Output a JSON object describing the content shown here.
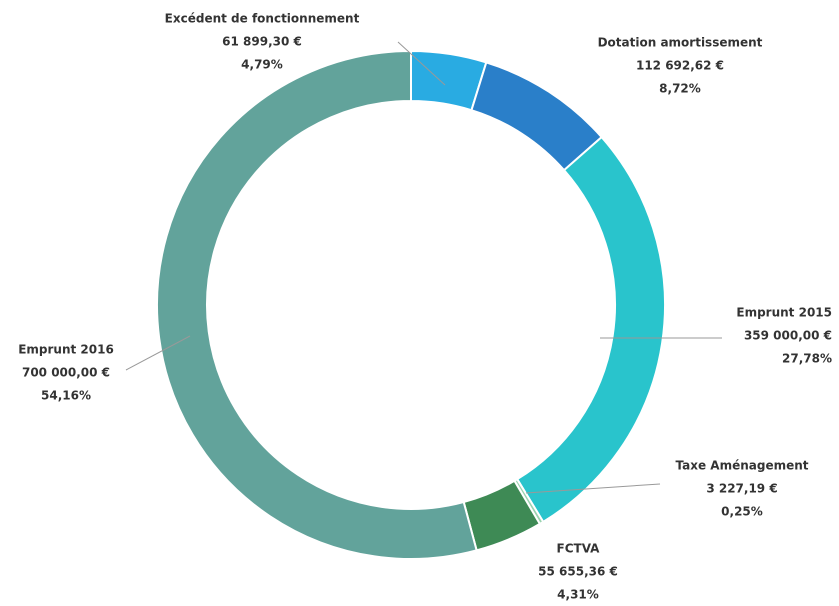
{
  "chart_data": {
    "type": "donut",
    "categories": [
      "Excédent de fonctionnement",
      "Dotation amortissement",
      "Emprunt 2015",
      "Taxe Aménagement",
      "FCTVA",
      "Emprunt 2016"
    ],
    "values": [
      61899.3,
      112692.62,
      359000.0,
      3227.19,
      55655.36,
      700000.0
    ],
    "value_labels": [
      "61 899,30 €",
      "112 692,62 €",
      "359 000,00 €",
      "3 227,19 €",
      "55 655,36 €",
      "700 000,00 €"
    ],
    "percent_labels": [
      "4,79%",
      "8,72%",
      "27,78%",
      "0,25%",
      "4,31%",
      "54,16%"
    ],
    "colors": [
      "#29abe2",
      "#2a7fc9",
      "#29c4cc",
      "#9bd3b0",
      "#3e8a55",
      "#62a39b"
    ]
  }
}
